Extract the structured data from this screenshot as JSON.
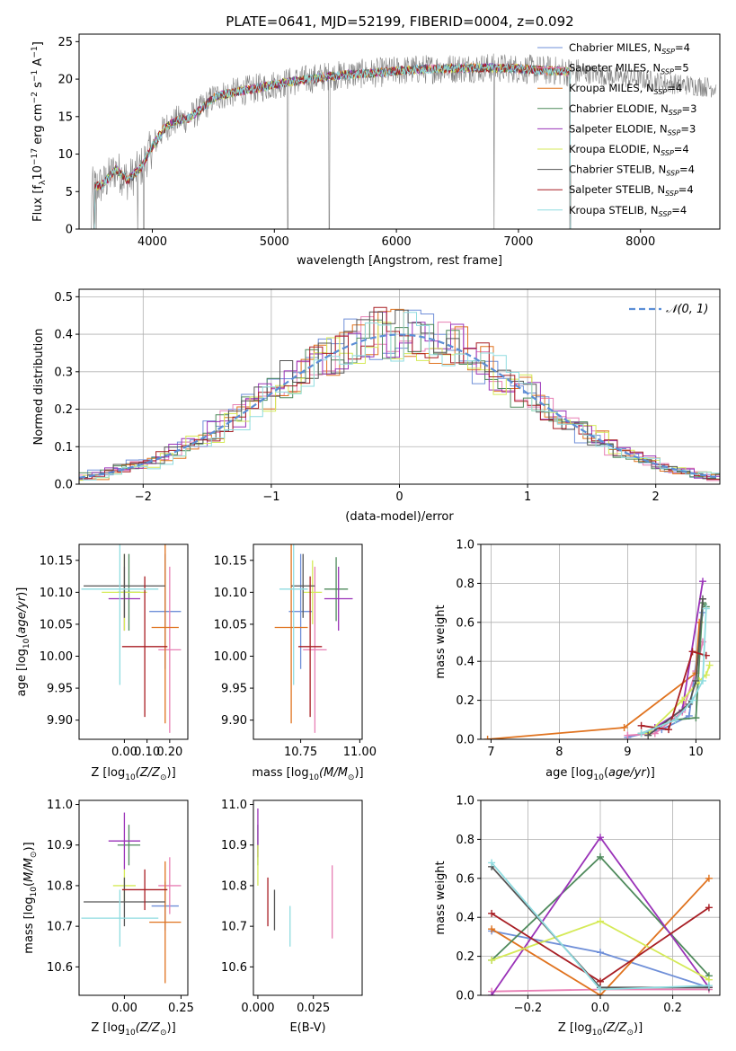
{
  "title": "PLATE=0641, MJD=52199, FIBERID=0004, z=0.092",
  "colors": {
    "Chabrier MILES": "#6f8fd8",
    "Salpeter MILES": "#e77fb4",
    "Kroupa MILES": "#e0731f",
    "Chabrier ELODIE": "#4f8a5c",
    "Salpeter ELODIE": "#9a32b8",
    "Kroupa ELODIE": "#d5ea58",
    "Chabrier STELIB": "#555555",
    "Salpeter STELIB": "#a81e24",
    "Kroupa STELIB": "#8fdce0",
    "data": "#808080",
    "normal": "#5b8ed6"
  },
  "chart_data": [
    {
      "id": "spectrum",
      "type": "line",
      "xlabel": "wavelength [Angstrom, rest frame]",
      "ylabel": "Flux [f_λ 10^-17 erg cm^-2 s^-1 A^-1]",
      "xlim": [
        3400,
        8650
      ],
      "ylim": [
        0,
        26
      ],
      "xticks": [
        4000,
        5000,
        6000,
        7000,
        8000
      ],
      "yticks": [
        0,
        5,
        10,
        15,
        20,
        25
      ],
      "legend_position": "upper-right",
      "legend": [
        {
          "name": "Chabrier MILES",
          "label": "Chabrier MILES, N",
          "sub": "SSP",
          "tail": "=4"
        },
        {
          "name": "Salpeter MILES",
          "label": "Salpeter MILES, N",
          "sub": "SSP",
          "tail": "=5"
        },
        {
          "name": "Kroupa MILES",
          "label": "Kroupa MILES, N",
          "sub": "SSP",
          "tail": "=4"
        },
        {
          "name": "Chabrier ELODIE",
          "label": "Chabrier ELODIE, N",
          "sub": "SSP",
          "tail": "=3"
        },
        {
          "name": "Salpeter ELODIE",
          "label": "Salpeter ELODIE, N",
          "sub": "SSP",
          "tail": "=3"
        },
        {
          "name": "Kroupa ELODIE",
          "label": "Kroupa ELODIE, N",
          "sub": "SSP",
          "tail": "=4"
        },
        {
          "name": "Chabrier STELIB",
          "label": "Chabrier STELIB, N",
          "sub": "SSP",
          "tail": "=4"
        },
        {
          "name": "Salpeter STELIB",
          "label": "Salpeter STELIB, N",
          "sub": "SSP",
          "tail": "=4"
        },
        {
          "name": "Kroupa STELIB",
          "label": "Kroupa STELIB, N",
          "sub": "SSP",
          "tail": "=4"
        }
      ],
      "data_continuum": {
        "x": [
          3500,
          3600,
          3700,
          3800,
          3900,
          4000,
          4100,
          4200,
          4300,
          4400,
          4500,
          4600,
          4700,
          4800,
          4900,
          5000,
          5200,
          5400,
          5600,
          5800,
          6000,
          6200,
          6400,
          6600,
          6800,
          7000,
          7200,
          7400,
          7600,
          7800,
          8000,
          8200,
          8400,
          8600
        ],
        "y": [
          5.5,
          6.0,
          8.0,
          6.5,
          8.0,
          11.0,
          13.5,
          14.5,
          14.8,
          16.0,
          17.5,
          18.0,
          18.3,
          18.6,
          18.9,
          19.3,
          19.8,
          20.3,
          20.6,
          20.8,
          21.1,
          21.3,
          21.4,
          21.5,
          21.5,
          21.4,
          21.2,
          21.0,
          20.7,
          20.3,
          20.0,
          19.5,
          19.2,
          18.9
        ]
      },
      "models_range": [
        3500,
        7430
      ],
      "data_range": [
        3500,
        8620
      ],
      "drops": [
        3500,
        3520,
        3540,
        3880,
        3930,
        5110,
        5450,
        6800,
        7420
      ]
    },
    {
      "id": "residuals",
      "type": "step",
      "xlabel": "(data-model)/error",
      "ylabel": "Normed distribution",
      "xlim": [
        -2.5,
        2.5
      ],
      "ylim": [
        0,
        0.52
      ],
      "xticks": [
        -2,
        -1,
        0,
        1,
        2
      ],
      "yticks": [
        0.0,
        0.1,
        0.2,
        0.3,
        0.4,
        0.5
      ],
      "grid": true,
      "legend_position": "upper-right",
      "normal_label": "𝒩(0, 1)"
    },
    {
      "id": "age-vs-Z",
      "type": "errorbar",
      "xlabel_text": "Z [log",
      "xlabel_sub": "10",
      "xlabel_tail": "(Z/Z",
      "xlabel_end": ")]",
      "ylabel": "age  [log10(age/yr)]",
      "xlim": [
        -0.2,
        0.28
      ],
      "ylim": [
        9.87,
        10.175
      ],
      "xticks": [
        0.0,
        0.1,
        0.2
      ],
      "yticks": [
        9.9,
        9.95,
        10.0,
        10.05,
        10.1,
        10.15
      ],
      "points": [
        {
          "model": "Chabrier MILES",
          "x": 0.18,
          "xerr": 0.07,
          "y": 10.07,
          "yerr": 0.09
        },
        {
          "model": "Salpeter MILES",
          "x": 0.2,
          "xerr": 0.05,
          "y": 10.01,
          "yerr": 0.13
        },
        {
          "model": "Kroupa MILES",
          "x": 0.18,
          "xerr": 0.06,
          "y": 10.045,
          "yerr": 0.15
        },
        {
          "model": "Chabrier ELODIE",
          "x": 0.02,
          "xerr": 0.05,
          "y": 10.1,
          "yerr": 0.06
        },
        {
          "model": "Salpeter ELODIE",
          "x": 0.0,
          "xerr": 0.07,
          "y": 10.09,
          "yerr": 0.05
        },
        {
          "model": "Kroupa ELODIE",
          "x": 0.0,
          "xerr": 0.1,
          "y": 10.1,
          "yerr": 0.06
        },
        {
          "model": "Chabrier STELIB",
          "x": 0.0,
          "xerr": 0.18,
          "y": 10.11,
          "yerr": 0.05
        },
        {
          "model": "Salpeter STELIB",
          "x": 0.09,
          "xerr": 0.1,
          "y": 10.015,
          "yerr": 0.11
        },
        {
          "model": "Kroupa STELIB",
          "x": -0.02,
          "xerr": 0.17,
          "y": 10.105,
          "yerr": 0.15
        }
      ]
    },
    {
      "id": "age-vs-mass",
      "type": "errorbar",
      "xlabel_text": "mass [log",
      "xlabel_sub": "10",
      "xlabel_tail": "(M/M",
      "xlabel_end": ")]",
      "xlim": [
        10.55,
        11.01
      ],
      "ylim": [
        9.87,
        10.175
      ],
      "xticks": [
        10.75,
        11.0
      ],
      "yticks": [
        9.9,
        9.95,
        10.0,
        10.05,
        10.1,
        10.15
      ],
      "points": [
        {
          "model": "Chabrier MILES",
          "x": 10.75,
          "xerr": 0.05,
          "y": 10.07,
          "yerr": 0.09
        },
        {
          "model": "Salpeter MILES",
          "x": 10.81,
          "xerr": 0.05,
          "y": 10.01,
          "yerr": 0.13
        },
        {
          "model": "Kroupa MILES",
          "x": 10.71,
          "xerr": 0.07,
          "y": 10.045,
          "yerr": 0.15
        },
        {
          "model": "Chabrier ELODIE",
          "x": 10.9,
          "xerr": 0.05,
          "y": 10.105,
          "yerr": 0.05
        },
        {
          "model": "Salpeter ELODIE",
          "x": 10.91,
          "xerr": 0.06,
          "y": 10.09,
          "yerr": 0.05
        },
        {
          "model": "Kroupa ELODIE",
          "x": 10.8,
          "xerr": 0.04,
          "y": 10.1,
          "yerr": 0.05
        },
        {
          "model": "Chabrier STELIB",
          "x": 10.76,
          "xerr": 0.05,
          "y": 10.11,
          "yerr": 0.05
        },
        {
          "model": "Salpeter STELIB",
          "x": 10.79,
          "xerr": 0.05,
          "y": 10.015,
          "yerr": 0.11
        },
        {
          "model": "Kroupa STELIB",
          "x": 10.72,
          "xerr": 0.06,
          "y": 10.105,
          "yerr": 0.15
        }
      ]
    },
    {
      "id": "weight-vs-age",
      "type": "line",
      "xlabel": "age  [log10(age/yr)]",
      "ylabel": "mass weight",
      "xlim": [
        6.85,
        10.35
      ],
      "ylim": [
        0,
        1.0
      ],
      "xticks": [
        7,
        8,
        9,
        10
      ],
      "yticks": [
        0.0,
        0.2,
        0.4,
        0.6,
        0.8,
        1.0
      ],
      "grid": true,
      "series": [
        {
          "model": "Chabrier MILES",
          "x": [
            9.0,
            9.5,
            9.9,
            10.1
          ],
          "y": [
            0.01,
            0.05,
            0.12,
            0.65
          ]
        },
        {
          "model": "Salpeter MILES",
          "x": [
            9.0,
            9.4,
            9.8,
            10.0,
            10.1
          ],
          "y": [
            0.02,
            0.03,
            0.14,
            0.35,
            0.5
          ]
        },
        {
          "model": "Kroupa MILES",
          "x": [
            6.95,
            8.95,
            10.0,
            10.05
          ],
          "y": [
            0.0,
            0.06,
            0.34,
            0.6
          ]
        },
        {
          "model": "Chabrier ELODIE",
          "x": [
            9.2,
            9.7,
            10.0,
            10.1,
            10.15
          ],
          "y": [
            0.03,
            0.1,
            0.11,
            0.7,
            0.68
          ]
        },
        {
          "model": "Salpeter ELODIE",
          "x": [
            9.4,
            9.8,
            10.1
          ],
          "y": [
            0.06,
            0.15,
            0.81
          ]
        },
        {
          "model": "Kroupa ELODIE",
          "x": [
            9.3,
            9.8,
            10.05,
            10.15,
            10.2
          ],
          "y": [
            0.03,
            0.2,
            0.3,
            0.33,
            0.38
          ]
        },
        {
          "model": "Chabrier STELIB",
          "x": [
            9.3,
            9.9,
            10.0,
            10.1
          ],
          "y": [
            0.02,
            0.18,
            0.3,
            0.72
          ]
        },
        {
          "model": "Salpeter STELIB",
          "x": [
            9.2,
            9.6,
            9.95,
            10.15
          ],
          "y": [
            0.07,
            0.05,
            0.45,
            0.43
          ]
        },
        {
          "model": "Kroupa STELIB",
          "x": [
            9.2,
            9.7,
            9.95,
            10.1,
            10.15
          ],
          "y": [
            0.03,
            0.1,
            0.2,
            0.3,
            0.67
          ]
        }
      ]
    },
    {
      "id": "mass-vs-Z",
      "type": "errorbar",
      "xlabel_text": "Z [log",
      "xlabel_sub": "10",
      "xlabel_tail": "(Z/Z",
      "xlabel_end": ")]",
      "ylabel": "mass [log10(M/M⊙)]",
      "xlim": [
        -0.2,
        0.28
      ],
      "ylim": [
        10.53,
        11.01
      ],
      "xticks": [
        0.0,
        0.25
      ],
      "yticks": [
        10.6,
        10.7,
        10.8,
        10.9,
        11.0
      ],
      "points": [
        {
          "model": "Chabrier MILES",
          "x": 0.18,
          "xerr": 0.06,
          "y": 10.75,
          "yerr": 0.06
        },
        {
          "model": "Salpeter MILES",
          "x": 0.2,
          "xerr": 0.05,
          "y": 10.8,
          "yerr": 0.07
        },
        {
          "model": "Kroupa MILES",
          "x": 0.18,
          "xerr": 0.07,
          "y": 10.71,
          "yerr": 0.15
        },
        {
          "model": "Chabrier ELODIE",
          "x": 0.02,
          "xerr": 0.05,
          "y": 10.9,
          "yerr": 0.05
        },
        {
          "model": "Salpeter ELODIE",
          "x": 0.0,
          "xerr": 0.07,
          "y": 10.91,
          "yerr": 0.07
        },
        {
          "model": "Kroupa ELODIE",
          "x": 0.0,
          "xerr": 0.05,
          "y": 10.8,
          "yerr": 0.04
        },
        {
          "model": "Chabrier STELIB",
          "x": 0.0,
          "xerr": 0.18,
          "y": 10.76,
          "yerr": 0.06
        },
        {
          "model": "Salpeter STELIB",
          "x": 0.09,
          "xerr": 0.1,
          "y": 10.79,
          "yerr": 0.05
        },
        {
          "model": "Kroupa STELIB",
          "x": -0.02,
          "xerr": 0.17,
          "y": 10.72,
          "yerr": 0.07
        }
      ]
    },
    {
      "id": "mass-vs-EBV",
      "type": "errorbar",
      "xlabel": "E(B-V)",
      "xlim": [
        -0.002,
        0.047
      ],
      "ylim": [
        10.53,
        11.01
      ],
      "xticks": [
        0.0,
        0.025
      ],
      "yticks": [
        10.6,
        10.7,
        10.8,
        10.9,
        11.0
      ],
      "points": [
        {
          "model": "Chabrier MILES",
          "x": 0.0475,
          "xerr": 0,
          "y": 10.77,
          "yerr": 0.04
        },
        {
          "model": "Salpeter MILES",
          "x": 0.0335,
          "xerr": 0,
          "y": 10.76,
          "yerr": 0.09
        },
        {
          "model": "Kroupa MILES",
          "x": 0.0475,
          "xerr": 0,
          "y": 10.66,
          "yerr": 0.11
        },
        {
          "model": "Chabrier ELODIE",
          "x": 0.0,
          "xerr": 0,
          "y": 10.9,
          "yerr": 0.05
        },
        {
          "model": "Salpeter ELODIE",
          "x": 0.0,
          "xerr": 0,
          "y": 10.93,
          "yerr": 0.06
        },
        {
          "model": "Kroupa ELODIE",
          "x": 0.0,
          "xerr": 0,
          "y": 10.85,
          "yerr": 0.05
        },
        {
          "model": "Chabrier STELIB",
          "x": 0.0075,
          "xerr": 0,
          "y": 10.74,
          "yerr": 0.05
        },
        {
          "model": "Salpeter STELIB",
          "x": 0.0045,
          "xerr": 0,
          "y": 10.76,
          "yerr": 0.06
        },
        {
          "model": "Kroupa STELIB",
          "x": 0.0145,
          "xerr": 0,
          "y": 10.7,
          "yerr": 0.05
        }
      ]
    },
    {
      "id": "weight-vs-Z",
      "type": "line",
      "xlabel_text": "Z [log",
      "xlabel_sub": "10",
      "xlabel_tail": "(Z/Z",
      "xlabel_end": ")]",
      "ylabel": "mass weight",
      "xlim": [
        -0.33,
        0.33
      ],
      "ylim": [
        0,
        1.0
      ],
      "xticks": [
        -0.2,
        0.0,
        0.2
      ],
      "yticks": [
        0.0,
        0.2,
        0.4,
        0.6,
        0.8,
        1.0
      ],
      "grid": true,
      "series": [
        {
          "model": "Chabrier MILES",
          "x": [
            -0.3,
            0.0,
            0.3
          ],
          "y": [
            0.33,
            0.22,
            0.04
          ]
        },
        {
          "model": "Salpeter MILES",
          "x": [
            -0.3,
            0.0,
            0.3
          ],
          "y": [
            0.02,
            0.03,
            0.03
          ]
        },
        {
          "model": "Kroupa MILES",
          "x": [
            -0.3,
            0.0,
            0.3
          ],
          "y": [
            0.34,
            0.0,
            0.6
          ]
        },
        {
          "model": "Chabrier ELODIE",
          "x": [
            -0.3,
            0.0,
            0.3
          ],
          "y": [
            0.18,
            0.71,
            0.1
          ]
        },
        {
          "model": "Salpeter ELODIE",
          "x": [
            -0.3,
            0.0,
            0.3
          ],
          "y": [
            0.0,
            0.81,
            0.04
          ]
        },
        {
          "model": "Kroupa ELODIE",
          "x": [
            -0.3,
            0.0,
            0.3
          ],
          "y": [
            0.18,
            0.38,
            0.08
          ]
        },
        {
          "model": "Chabrier STELIB",
          "x": [
            -0.3,
            0.0,
            0.3
          ],
          "y": [
            0.66,
            0.04,
            0.04
          ]
        },
        {
          "model": "Salpeter STELIB",
          "x": [
            -0.3,
            0.0,
            0.3
          ],
          "y": [
            0.42,
            0.07,
            0.45
          ]
        },
        {
          "model": "Kroupa STELIB",
          "x": [
            -0.3,
            0.0,
            0.3
          ],
          "y": [
            0.68,
            0.03,
            0.05
          ]
        }
      ]
    }
  ]
}
